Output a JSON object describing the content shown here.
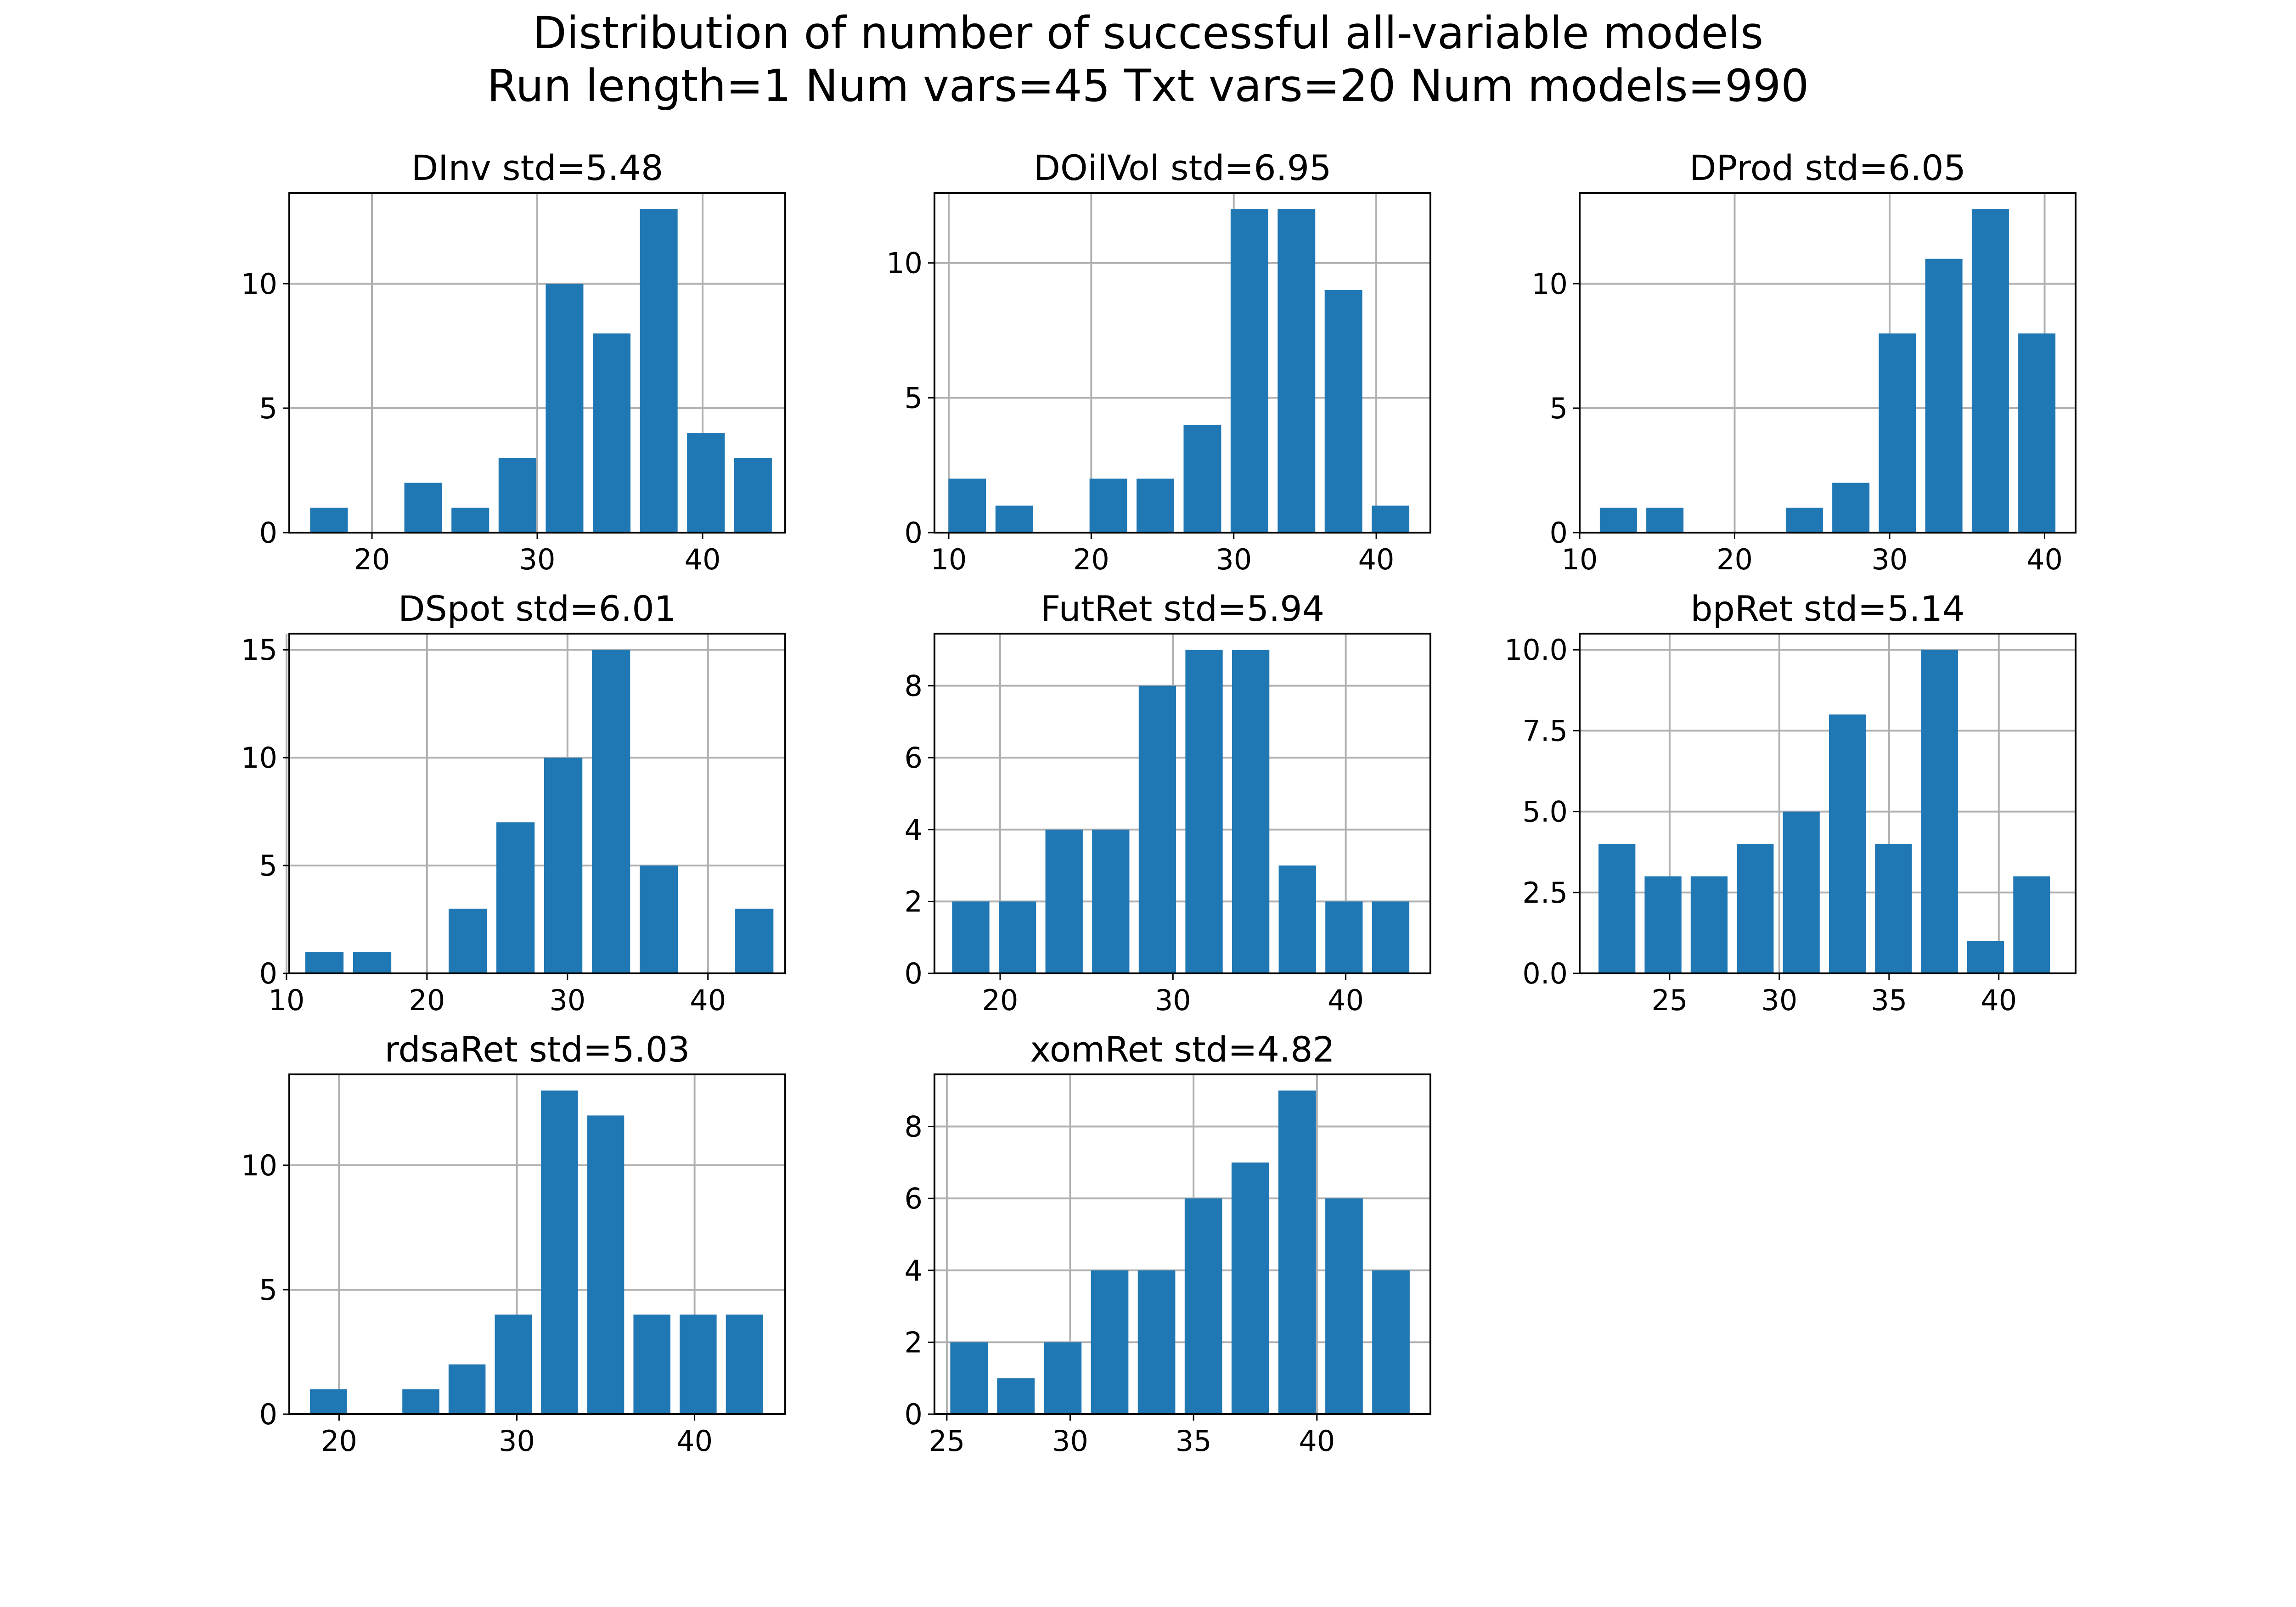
{
  "figure": {
    "title_line1": "Distribution of number of successful all-variable models",
    "title_line2": "Run length=1  Num vars=45  Txt vars=20  Num models=990"
  },
  "colors": {
    "bar": "#1f77b4",
    "grid": "#b0b0b0",
    "axis": "#000000"
  },
  "chart_data": [
    {
      "type": "bar",
      "title": "DInv  std=5.48",
      "x": [
        17.4,
        20.25,
        23.1,
        25.95,
        28.8,
        31.65,
        34.5,
        37.35,
        40.2,
        43.05
      ],
      "values": [
        1,
        0,
        2,
        1,
        3,
        10,
        8,
        13,
        4,
        3
      ],
      "xlim": [
        15,
        45
      ],
      "ylim": [
        0,
        13.65
      ],
      "xticks": [
        20,
        30,
        40
      ],
      "yticks": [
        0,
        5,
        10
      ],
      "grid": true
    },
    {
      "type": "bar",
      "title": "DOilVol  std=6.95",
      "x": [
        11.3,
        14.6,
        17.9,
        21.2,
        24.5,
        27.8,
        31.1,
        34.4,
        37.7,
        41.0
      ],
      "values": [
        2,
        1,
        0,
        2,
        2,
        4,
        12,
        12,
        9,
        1
      ],
      "xlim": [
        9,
        43.8
      ],
      "ylim": [
        0,
        12.6
      ],
      "xticks": [
        10,
        20,
        30,
        40
      ],
      "yticks": [
        0,
        5,
        10
      ],
      "grid": true
    },
    {
      "type": "bar",
      "title": "DProd  std=6.05",
      "x": [
        12.5,
        15.5,
        18.5,
        21.5,
        24.5,
        27.5,
        30.5,
        33.5,
        36.5,
        39.5
      ],
      "values": [
        1,
        1,
        0,
        0,
        1,
        2,
        8,
        11,
        13,
        8
      ],
      "xlim": [
        10,
        42
      ],
      "ylim": [
        0,
        13.65
      ],
      "xticks": [
        10,
        20,
        30,
        40
      ],
      "yticks": [
        0,
        5,
        10
      ],
      "grid": true
    },
    {
      "type": "bar",
      "title": "DSpot  std=6.01",
      "x": [
        12.7,
        16.1,
        19.5,
        22.9,
        26.3,
        29.7,
        33.1,
        36.5,
        39.9,
        43.3
      ],
      "values": [
        1,
        1,
        0,
        3,
        7,
        10,
        15,
        5,
        0,
        3
      ],
      "xlim": [
        10.2,
        45.5
      ],
      "ylim": [
        0,
        15.75
      ],
      "xticks": [
        10,
        20,
        30,
        40
      ],
      "yticks": [
        0,
        5,
        10,
        15
      ],
      "grid": true
    },
    {
      "type": "bar",
      "title": "FutRet  std=5.94",
      "x": [
        18.3,
        21.0,
        23.7,
        26.4,
        29.1,
        31.8,
        34.5,
        37.2,
        39.9,
        42.6
      ],
      "values": [
        2,
        2,
        4,
        4,
        8,
        9,
        9,
        3,
        2,
        2
      ],
      "xlim": [
        16.2,
        44.9
      ],
      "ylim": [
        0,
        9.45
      ],
      "xticks": [
        20,
        30,
        40
      ],
      "yticks": [
        0,
        2,
        4,
        6,
        8
      ],
      "grid": true
    },
    {
      "type": "bar",
      "title": "bpRet  std=5.14",
      "x": [
        22.6,
        24.7,
        26.8,
        28.9,
        31.0,
        33.1,
        35.2,
        37.3,
        39.4,
        41.5
      ],
      "values": [
        4,
        3,
        3,
        4,
        5,
        8,
        4,
        10,
        1,
        3
      ],
      "xlim": [
        20.9,
        43.5
      ],
      "ylim": [
        0,
        10.5
      ],
      "xticks": [
        25,
        30,
        35,
        40
      ],
      "yticks": [
        0,
        2.5,
        5,
        7.5,
        10
      ],
      "ytick_labels": [
        "0.0",
        "2.5",
        "5.0",
        "7.5",
        "10.0"
      ],
      "grid": true
    },
    {
      "type": "bar",
      "title": "rdsaRet  std=5.03",
      "x": [
        19.4,
        22.0,
        24.6,
        27.2,
        29.8,
        32.4,
        35.0,
        37.6,
        40.2,
        42.8
      ],
      "values": [
        1,
        0,
        1,
        2,
        4,
        13,
        12,
        4,
        4,
        4
      ],
      "xlim": [
        17.2,
        45.1
      ],
      "ylim": [
        0,
        13.65
      ],
      "xticks": [
        20,
        30,
        40
      ],
      "yticks": [
        0,
        5,
        10
      ],
      "grid": true
    },
    {
      "type": "bar",
      "title": "xomRet  std=4.82",
      "x": [
        25.9,
        27.8,
        29.7,
        31.6,
        33.5,
        35.4,
        37.3,
        39.2,
        41.1,
        43.0
      ],
      "values": [
        2,
        1,
        2,
        4,
        4,
        6,
        7,
        9,
        6,
        4
      ],
      "xlim": [
        24.5,
        44.6
      ],
      "ylim": [
        0,
        9.45
      ],
      "xticks": [
        25,
        30,
        35,
        40
      ],
      "yticks": [
        0,
        2,
        4,
        6,
        8
      ],
      "grid": true
    }
  ]
}
